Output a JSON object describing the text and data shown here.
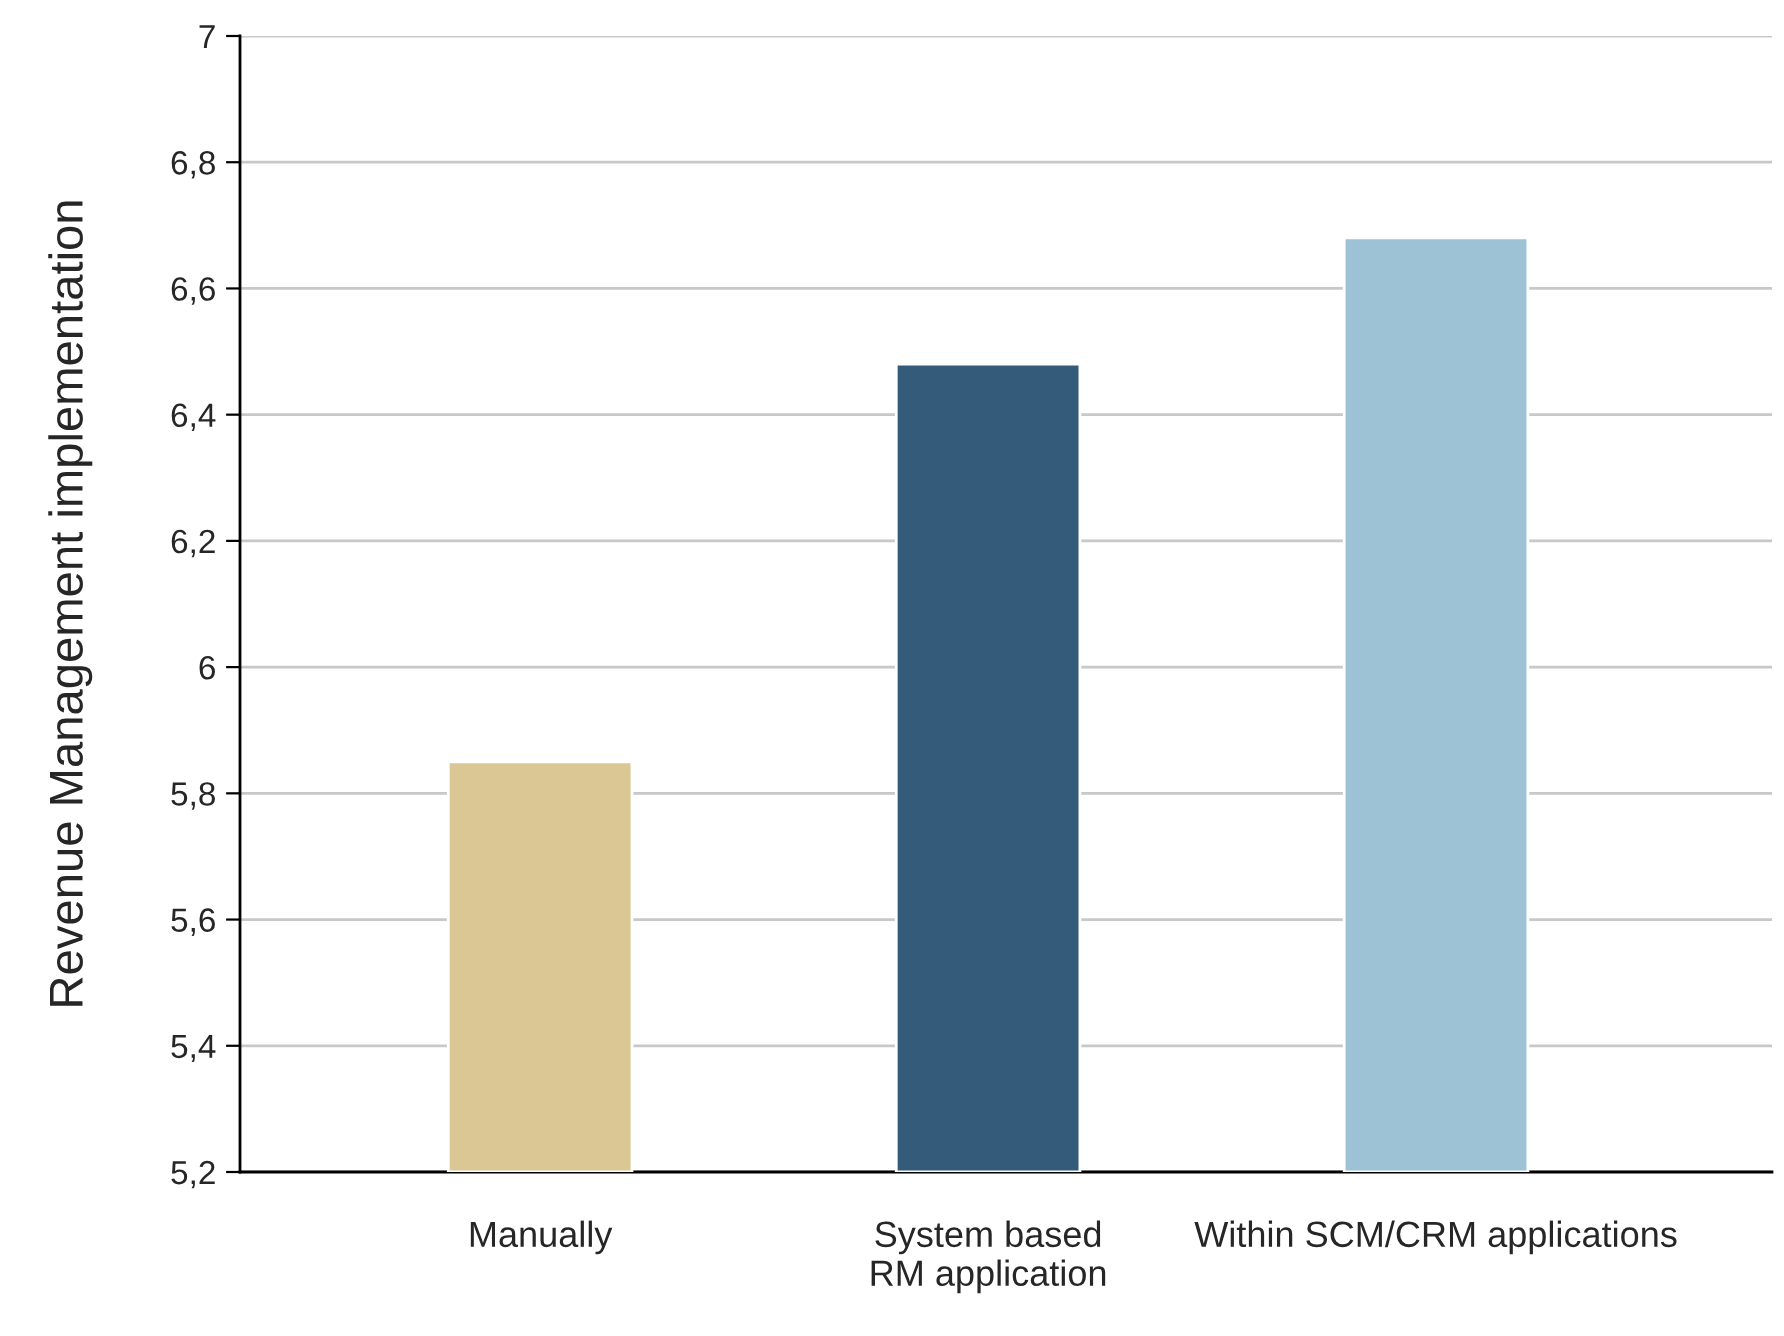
{
  "chart_data": {
    "type": "bar",
    "ylabel": "Revenue Management implementation",
    "categories": [
      "Manually",
      "System based\nRM application",
      "Within SCM/CRM applications"
    ],
    "values": [
      5.85,
      6.48,
      6.68
    ],
    "colors": [
      "#dbc794",
      "#345b7a",
      "#9dc2d6"
    ],
    "ylim": [
      5.2,
      7
    ],
    "yticks": [
      {
        "value": 5.2,
        "label": "5,2"
      },
      {
        "value": 5.4,
        "label": "5,4"
      },
      {
        "value": 5.6,
        "label": "5,6"
      },
      {
        "value": 5.8,
        "label": "5,8"
      },
      6,
      {
        "value": 6.2,
        "label": "6,2"
      },
      {
        "value": 6.4,
        "label": "6,4"
      },
      {
        "value": 6.6,
        "label": "6,6"
      },
      {
        "value": 6.8,
        "label": "6,8"
      },
      7
    ],
    "grid": "y",
    "legend": false
  }
}
